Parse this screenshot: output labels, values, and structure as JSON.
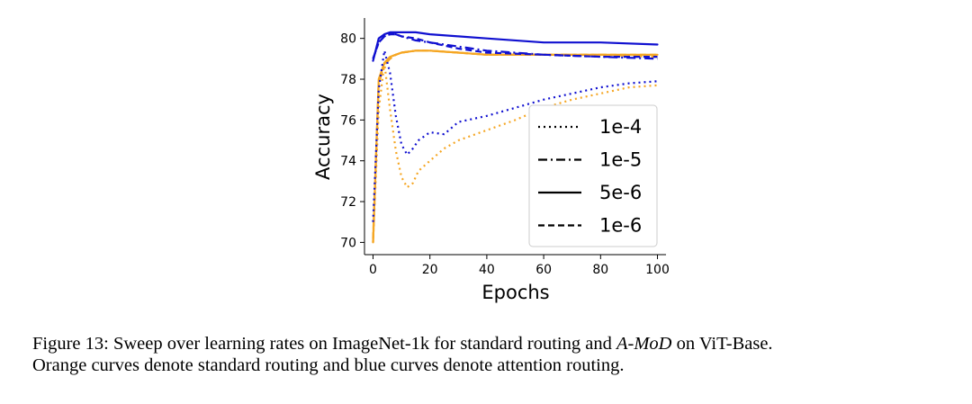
{
  "chart_data": {
    "type": "line",
    "xlabel": "Epochs",
    "ylabel": "Accuracy",
    "xlim": [
      -3,
      103
    ],
    "ylim": [
      69.4,
      81.0
    ],
    "xticks": [
      0,
      20,
      40,
      60,
      80,
      100
    ],
    "yticks": [
      70,
      72,
      74,
      76,
      78,
      80
    ],
    "grid": false,
    "legend_position": "lower-right",
    "legend": [
      {
        "label": "1e-4",
        "style": "dotted"
      },
      {
        "label": "1e-5",
        "style": "dashdot"
      },
      {
        "label": "5e-6",
        "style": "solid"
      },
      {
        "label": "1e-6",
        "style": "dashed"
      }
    ],
    "colors": {
      "standard_routing": "#f5a623",
      "attention_routing": "#1010d0"
    },
    "series": [
      {
        "routing": "standard",
        "style": "dotted",
        "x": [
          0,
          2,
          4,
          6,
          8,
          10,
          12,
          14,
          16,
          20,
          25,
          30,
          40,
          50,
          60,
          70,
          80,
          90,
          100
        ],
        "y": [
          70.0,
          76.5,
          78.8,
          76.5,
          74.5,
          73.2,
          72.7,
          72.9,
          73.5,
          74.0,
          74.6,
          75.0,
          75.5,
          76.0,
          76.6,
          77.0,
          77.3,
          77.6,
          77.7
        ]
      },
      {
        "routing": "attention",
        "style": "dotted",
        "x": [
          0,
          2,
          4,
          6,
          8,
          10,
          12,
          14,
          16,
          20,
          25,
          30,
          40,
          50,
          60,
          70,
          80,
          90,
          100
        ],
        "y": [
          71.0,
          77.5,
          79.4,
          78.3,
          76.2,
          74.8,
          74.3,
          74.6,
          75.0,
          75.4,
          75.3,
          75.9,
          76.2,
          76.6,
          77.0,
          77.3,
          77.6,
          77.8,
          77.9
        ]
      },
      {
        "routing": "standard",
        "style": "dashdot",
        "x": [
          0,
          2,
          4,
          6,
          8,
          10,
          15,
          20,
          30,
          40,
          60,
          80,
          100
        ],
        "y": [
          70.0,
          77.8,
          78.7,
          79.0,
          79.2,
          79.3,
          79.4,
          79.4,
          79.3,
          79.2,
          79.2,
          79.2,
          79.1
        ]
      },
      {
        "routing": "attention",
        "style": "dashdot",
        "x": [
          0,
          2,
          4,
          6,
          8,
          10,
          15,
          20,
          30,
          40,
          60,
          80,
          100
        ],
        "y": [
          79.0,
          79.8,
          80.1,
          80.2,
          80.2,
          80.1,
          79.9,
          79.8,
          79.6,
          79.4,
          79.2,
          79.1,
          79.0
        ]
      },
      {
        "routing": "standard",
        "style": "solid",
        "x": [
          0,
          2,
          4,
          6,
          8,
          10,
          15,
          20,
          30,
          40,
          60,
          80,
          100
        ],
        "y": [
          70.0,
          78.0,
          78.8,
          79.1,
          79.2,
          79.3,
          79.4,
          79.4,
          79.3,
          79.2,
          79.2,
          79.2,
          79.2
        ]
      },
      {
        "routing": "attention",
        "style": "solid",
        "x": [
          0,
          2,
          4,
          6,
          8,
          10,
          15,
          20,
          30,
          40,
          60,
          80,
          100
        ],
        "y": [
          78.9,
          80.0,
          80.2,
          80.3,
          80.3,
          80.3,
          80.3,
          80.2,
          80.1,
          80.0,
          79.8,
          79.8,
          79.7
        ]
      },
      {
        "routing": "standard",
        "style": "dashed",
        "x": [
          0,
          2,
          4,
          6,
          8,
          10,
          15,
          20,
          30,
          40,
          60,
          80,
          100
        ],
        "y": [
          70.2,
          77.9,
          78.8,
          79.1,
          79.2,
          79.3,
          79.4,
          79.4,
          79.3,
          79.2,
          79.2,
          79.2,
          79.2
        ]
      },
      {
        "routing": "attention",
        "style": "dashed",
        "x": [
          0,
          2,
          4,
          6,
          8,
          10,
          15,
          20,
          30,
          40,
          60,
          80,
          100
        ],
        "y": [
          79.0,
          79.8,
          80.1,
          80.2,
          80.2,
          80.1,
          80.0,
          79.8,
          79.5,
          79.3,
          79.2,
          79.1,
          79.1
        ]
      }
    ]
  },
  "caption": {
    "prefix": "Figure 13: Sweep over learning rates on ImageNet-1k for standard routing and ",
    "italic": "A-MoD",
    "suffix": " on ViT-Base.",
    "line2": "Orange curves denote standard routing and blue curves denote attention routing."
  }
}
